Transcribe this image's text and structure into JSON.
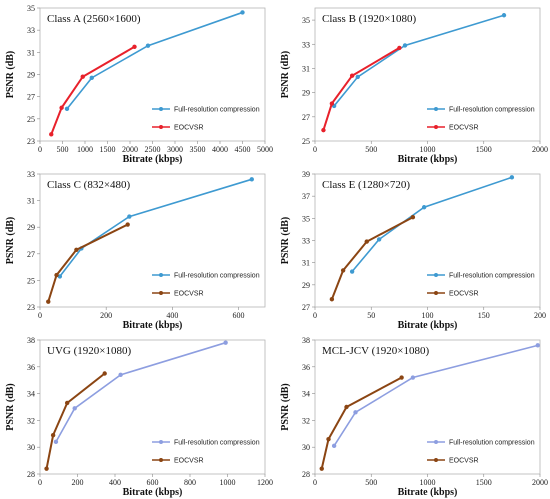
{
  "chart_data": [
    {
      "type": "line",
      "title": "Class A (2560×1600)",
      "xlabel": "Bitrate (kbps)",
      "ylabel": "PSNR (dB)",
      "xlim": [
        0,
        5000
      ],
      "ylim": [
        23,
        35
      ],
      "xticks": [
        "0",
        "500",
        "1000",
        "1500",
        "2000",
        "2500",
        "3000",
        "3500",
        "4000",
        "4500",
        "5000"
      ],
      "yticks": [
        "23",
        "25",
        "27",
        "29",
        "31",
        "33",
        "35"
      ],
      "legend_position": "bottom-right",
      "colors": [
        "#3e9ad1",
        "#e8212b"
      ],
      "series": [
        {
          "name": "Full-resolution compression",
          "x": [
            600,
            1150,
            2400,
            4500
          ],
          "y": [
            25.9,
            28.7,
            31.6,
            34.6
          ]
        },
        {
          "name": "EOCVSR",
          "x": [
            250,
            480,
            950,
            2100
          ],
          "y": [
            23.6,
            26.0,
            28.8,
            31.5
          ]
        }
      ]
    },
    {
      "type": "line",
      "title": "Class B (1920×1080)",
      "xlabel": "Bitrate (kbps)",
      "ylabel": "PSNR (dB)",
      "xlim": [
        0,
        2000
      ],
      "ylim": [
        25,
        36
      ],
      "xticks": [
        "0",
        "500",
        "1000",
        "1500",
        "2000"
      ],
      "yticks": [
        "25",
        "27",
        "29",
        "31",
        "33",
        "35"
      ],
      "legend_position": "bottom-right",
      "colors": [
        "#3e9ad1",
        "#e8212b"
      ],
      "series": [
        {
          "name": "Full-resolution compression",
          "x": [
            170,
            380,
            800,
            1680
          ],
          "y": [
            27.9,
            30.3,
            32.9,
            35.4
          ]
        },
        {
          "name": "EOCVSR",
          "x": [
            75,
            150,
            330,
            750
          ],
          "y": [
            25.9,
            28.1,
            30.4,
            32.7
          ]
        }
      ]
    },
    {
      "type": "line",
      "title": "Class C (832×480)",
      "xlabel": "Bitrate (kbps)",
      "ylabel": "PSNR (dB)",
      "xlim": [
        0,
        680
      ],
      "ylim": [
        23,
        33
      ],
      "xticks": [
        "0",
        "200",
        "400",
        "600"
      ],
      "yticks": [
        "23",
        "25",
        "27",
        "29",
        "31",
        "33"
      ],
      "legend_position": "bottom-right",
      "colors": [
        "#3e9ad1",
        "#8b4513"
      ],
      "series": [
        {
          "name": "Full-resolution compression",
          "x": [
            60,
            125,
            270,
            640
          ],
          "y": [
            25.3,
            27.4,
            29.8,
            32.6
          ]
        },
        {
          "name": "EOCVSR",
          "x": [
            25,
            50,
            110,
            265
          ],
          "y": [
            23.4,
            25.4,
            27.3,
            29.2
          ]
        }
      ]
    },
    {
      "type": "line",
      "title": "Class E (1280×720)",
      "xlabel": "Bitrate (kbps)",
      "ylabel": "PSNR (dB)",
      "xlim": [
        0,
        200
      ],
      "ylim": [
        27,
        39
      ],
      "xticks": [
        "0",
        "50",
        "100",
        "150",
        "200"
      ],
      "yticks": [
        "27",
        "29",
        "31",
        "33",
        "35",
        "37",
        "39"
      ],
      "legend_position": "bottom-right",
      "colors": [
        "#3e9ad1",
        "#8b4513"
      ],
      "series": [
        {
          "name": "Full-resolution compression",
          "x": [
            33,
            57,
            97,
            175
          ],
          "y": [
            30.2,
            33.1,
            36.0,
            38.7
          ]
        },
        {
          "name": "EOCVSR",
          "x": [
            15,
            25,
            46,
            87
          ],
          "y": [
            27.7,
            30.3,
            32.9,
            35.1
          ]
        }
      ]
    },
    {
      "type": "line",
      "title": "UVG (1920×1080)",
      "xlabel": "Bitrate (kbps)",
      "ylabel": "PSNR (dB)",
      "xlim": [
        0,
        1200
      ],
      "ylim": [
        28,
        38
      ],
      "xticks": [
        "0",
        "200",
        "400",
        "600",
        "800",
        "1000",
        "1200"
      ],
      "yticks": [
        "28",
        "30",
        "32",
        "34",
        "36",
        "38"
      ],
      "legend_position": "bottom-right",
      "colors": [
        "#8d9ee0",
        "#8b4513"
      ],
      "series": [
        {
          "name": "Full-resolution compression",
          "x": [
            85,
            185,
            430,
            990
          ],
          "y": [
            30.4,
            32.9,
            35.4,
            37.8
          ]
        },
        {
          "name": "EOCVSR",
          "x": [
            35,
            70,
            145,
            345
          ],
          "y": [
            28.4,
            30.9,
            33.3,
            35.5
          ]
        }
      ]
    },
    {
      "type": "line",
      "title": "MCL-JCV (1920×1080)",
      "xlabel": "Bitrate (kbps)",
      "ylabel": "PSNR (dB)",
      "xlim": [
        0,
        2000
      ],
      "ylim": [
        28,
        38
      ],
      "xticks": [
        "0",
        "500",
        "1000",
        "1500",
        "2000"
      ],
      "yticks": [
        "28",
        "30",
        "32",
        "34",
        "36",
        "38"
      ],
      "legend_position": "bottom-right",
      "colors": [
        "#8d9ee0",
        "#8b4513"
      ],
      "series": [
        {
          "name": "Full-resolution compression",
          "x": [
            170,
            360,
            870,
            1980
          ],
          "y": [
            30.1,
            32.6,
            35.2,
            37.6
          ]
        },
        {
          "name": "EOCVSR",
          "x": [
            60,
            120,
            280,
            770
          ],
          "y": [
            28.4,
            30.6,
            33.0,
            35.2
          ]
        }
      ]
    }
  ]
}
